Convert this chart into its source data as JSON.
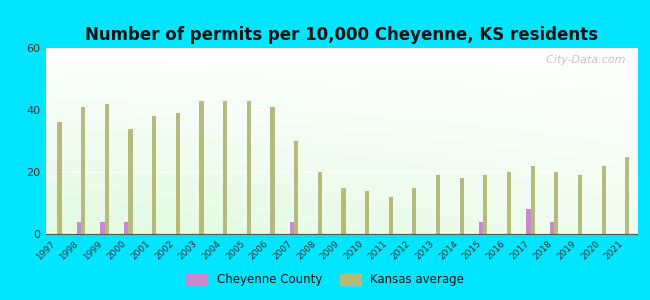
{
  "title": "Number of permits per 10,000 Cheyenne, KS residents",
  "years": [
    1997,
    1998,
    1999,
    2000,
    2001,
    2002,
    2003,
    2004,
    2005,
    2006,
    2007,
    2008,
    2009,
    2010,
    2011,
    2012,
    2013,
    2014,
    2015,
    2016,
    2017,
    2018,
    2019,
    2020,
    2021
  ],
  "kansas_avg": [
    36,
    41,
    42,
    34,
    38,
    39,
    43,
    43,
    43,
    41,
    30,
    20,
    15,
    14,
    12,
    15,
    19,
    18,
    19,
    20,
    22,
    20,
    19,
    22,
    25
  ],
  "cheyenne": [
    0,
    4,
    4,
    4,
    0,
    0,
    0,
    0,
    0,
    0,
    4,
    0,
    0,
    0,
    0,
    0,
    0,
    0,
    4,
    0,
    8,
    4,
    0,
    0,
    0
  ],
  "kansas_color": "#b5bb7a",
  "cheyenne_color": "#cc88cc",
  "background_outer": "#00e5ff",
  "ylim": [
    0,
    60
  ],
  "yticks": [
    0,
    20,
    40,
    60
  ],
  "bar_width": 0.18,
  "title_fontsize": 12,
  "watermark": "  City-Data.com"
}
